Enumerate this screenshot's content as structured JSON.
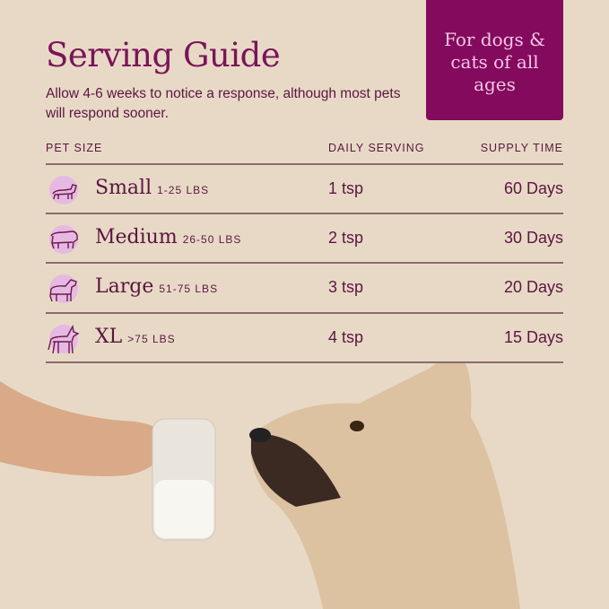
{
  "title": "Serving Guide",
  "subtitle": "Allow 4-6 weeks to notice a response, although most pets will respond sooner.",
  "badge": "For dogs & cats of all ages",
  "headers": {
    "pet_size": "PET SIZE",
    "daily_serving": "DAILY SERVING",
    "supply_time": "SUPPLY TIME"
  },
  "rows": [
    {
      "icon": "dachshund-icon",
      "size": "Small",
      "weight": "1-25 LBS",
      "serving": "1 tsp",
      "supply": "60 Days"
    },
    {
      "icon": "bulldog-icon",
      "size": "Medium",
      "weight": "26-50 LBS",
      "serving": "2 tsp",
      "supply": "30 Days"
    },
    {
      "icon": "retriever-icon",
      "size": "Large",
      "weight": "51-75 LBS",
      "serving": "3 tsp",
      "supply": "20 Days"
    },
    {
      "icon": "doberman-icon",
      "size": "XL",
      "weight": ">75 LBS",
      "serving": "4 tsp",
      "supply": "15 Days"
    }
  ],
  "colors": {
    "background": "#e8d9c6",
    "accent": "#840a5e",
    "text": "#5a1640",
    "icon_bg": "#e6b9e2"
  }
}
